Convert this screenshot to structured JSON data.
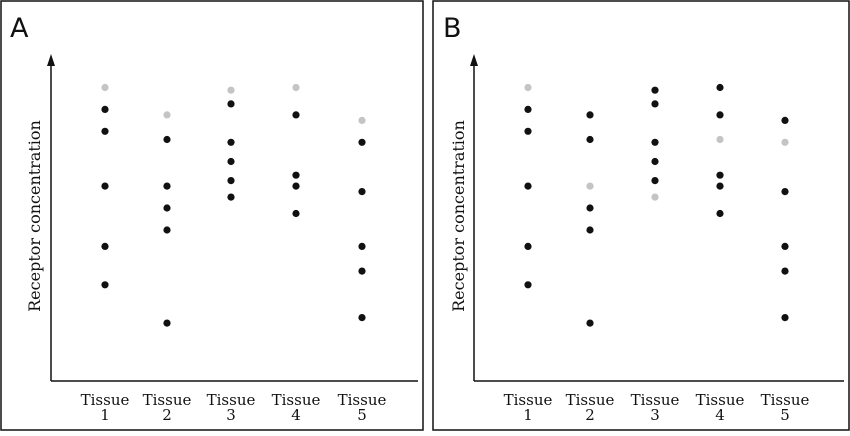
{
  "chart_data": [
    {
      "type": "scatter",
      "panel_label": "A",
      "title": "",
      "xlabel": "",
      "ylabel": "Receptor concentration",
      "categories": [
        "Tissue\n1",
        "Tissue\n2",
        "Tissue\n3",
        "Tissue\n4",
        "Tissue\n5"
      ],
      "ylim": [
        0,
        100
      ],
      "grid": false,
      "legend": "none",
      "colors": {
        "dark": "#111111",
        "light": "#c4c4c4"
      },
      "series": [
        {
          "color": "dark",
          "points": [
            {
              "x": 1,
              "y": 90
            },
            {
              "x": 1,
              "y": 82
            },
            {
              "x": 1,
              "y": 62
            },
            {
              "x": 1,
              "y": 40
            },
            {
              "x": 1,
              "y": 26
            },
            {
              "x": 2,
              "y": 79
            },
            {
              "x": 2,
              "y": 62
            },
            {
              "x": 2,
              "y": 54
            },
            {
              "x": 2,
              "y": 46
            },
            {
              "x": 2,
              "y": 12
            },
            {
              "x": 3,
              "y": 92
            },
            {
              "x": 3,
              "y": 78
            },
            {
              "x": 3,
              "y": 71
            },
            {
              "x": 3,
              "y": 64
            },
            {
              "x": 3,
              "y": 58
            },
            {
              "x": 4,
              "y": 88
            },
            {
              "x": 4,
              "y": 66
            },
            {
              "x": 4,
              "y": 62
            },
            {
              "x": 4,
              "y": 52
            },
            {
              "x": 5,
              "y": 78
            },
            {
              "x": 5,
              "y": 60
            },
            {
              "x": 5,
              "y": 40
            },
            {
              "x": 5,
              "y": 31
            },
            {
              "x": 5,
              "y": 14
            }
          ]
        },
        {
          "color": "light",
          "points": [
            {
              "x": 1,
              "y": 98
            },
            {
              "x": 2,
              "y": 88
            },
            {
              "x": 3,
              "y": 97
            },
            {
              "x": 4,
              "y": 98
            },
            {
              "x": 5,
              "y": 86
            }
          ]
        }
      ]
    },
    {
      "type": "scatter",
      "panel_label": "B",
      "title": "",
      "xlabel": "",
      "ylabel": "Receptor concentration",
      "categories": [
        "Tissue\n1",
        "Tissue\n2",
        "Tissue\n3",
        "Tissue\n4",
        "Tissue\n5"
      ],
      "ylim": [
        0,
        100
      ],
      "grid": false,
      "legend": "none",
      "colors": {
        "dark": "#111111",
        "light": "#c4c4c4"
      },
      "series": [
        {
          "color": "dark",
          "points": [
            {
              "x": 1,
              "y": 90
            },
            {
              "x": 1,
              "y": 82
            },
            {
              "x": 1,
              "y": 62
            },
            {
              "x": 1,
              "y": 40
            },
            {
              "x": 1,
              "y": 26
            },
            {
              "x": 2,
              "y": 88
            },
            {
              "x": 2,
              "y": 79
            },
            {
              "x": 2,
              "y": 54
            },
            {
              "x": 2,
              "y": 46
            },
            {
              "x": 2,
              "y": 12
            },
            {
              "x": 3,
              "y": 97
            },
            {
              "x": 3,
              "y": 92
            },
            {
              "x": 3,
              "y": 78
            },
            {
              "x": 3,
              "y": 71
            },
            {
              "x": 3,
              "y": 64
            },
            {
              "x": 4,
              "y": 98
            },
            {
              "x": 4,
              "y": 88
            },
            {
              "x": 4,
              "y": 66
            },
            {
              "x": 4,
              "y": 62
            },
            {
              "x": 4,
              "y": 52
            },
            {
              "x": 5,
              "y": 86
            },
            {
              "x": 5,
              "y": 60
            },
            {
              "x": 5,
              "y": 40
            },
            {
              "x": 5,
              "y": 31
            },
            {
              "x": 5,
              "y": 14
            }
          ]
        },
        {
          "color": "light",
          "points": [
            {
              "x": 1,
              "y": 98
            },
            {
              "x": 2,
              "y": 62
            },
            {
              "x": 3,
              "y": 58
            },
            {
              "x": 4,
              "y": 79
            },
            {
              "x": 5,
              "y": 78
            }
          ]
        }
      ]
    }
  ]
}
